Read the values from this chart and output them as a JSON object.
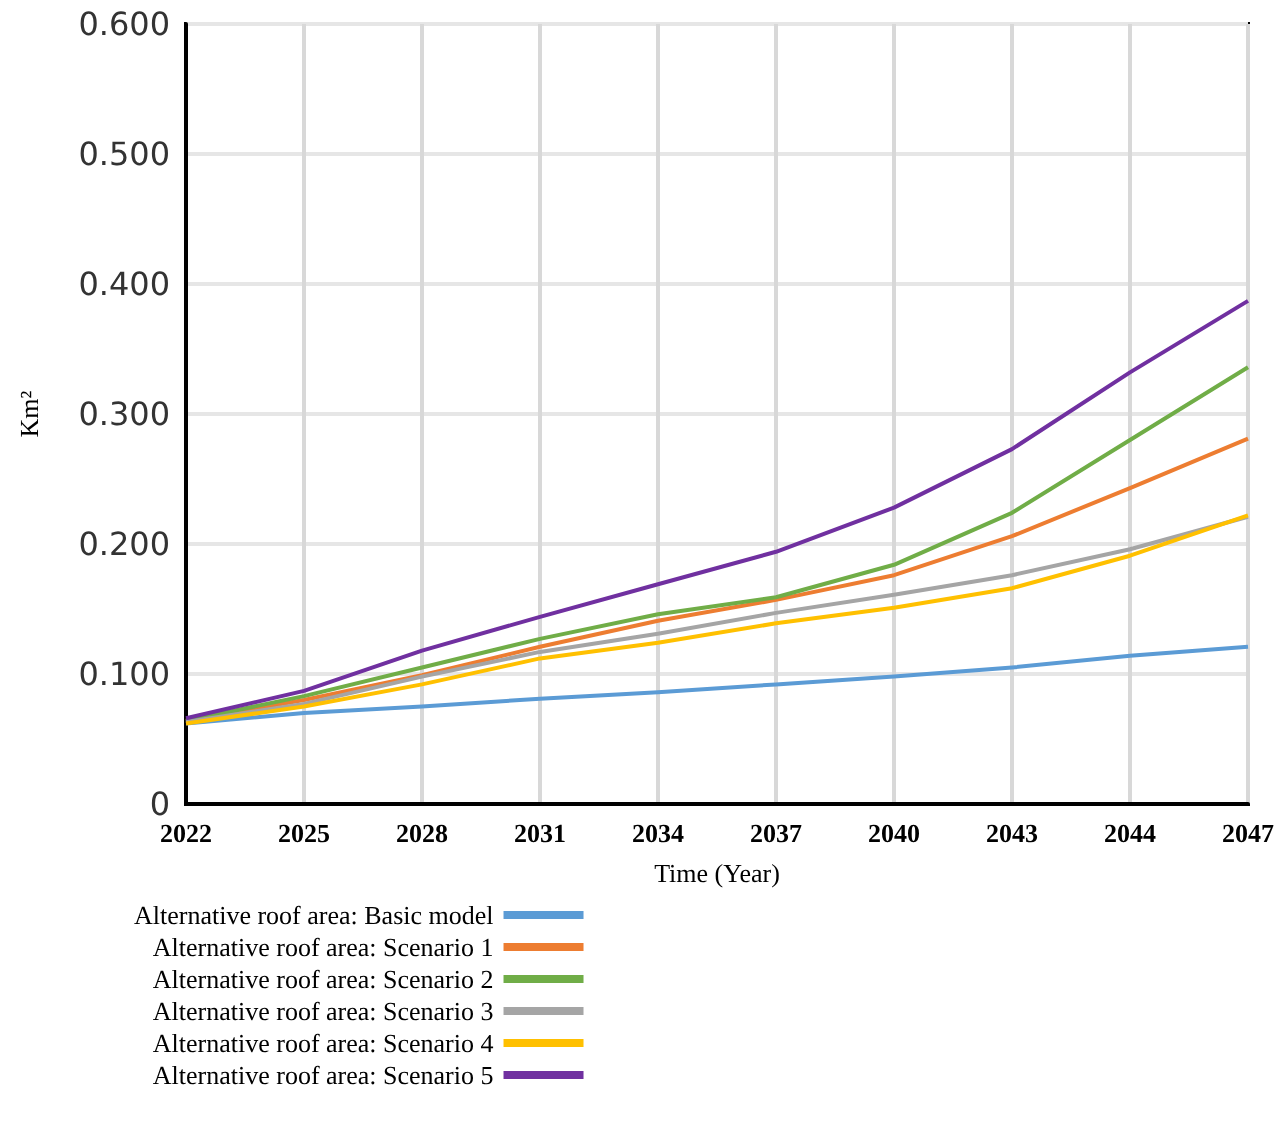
{
  "chart_data": {
    "type": "line",
    "xlabel": "Time (Year)",
    "ylabel": "Km²",
    "categories": [
      "2022",
      "2025",
      "2028",
      "2031",
      "2034",
      "2037",
      "2040",
      "2043",
      "2044",
      "2047"
    ],
    "ylim": [
      0,
      0.6
    ],
    "yticks": [
      0,
      {
        "value": 0.1,
        "label": "0.100"
      },
      {
        "value": 0.2,
        "label": "0.200"
      },
      {
        "value": 0.3,
        "label": "0.300"
      },
      {
        "value": 0.4,
        "label": "0.400"
      },
      {
        "value": 0.5,
        "label": "0.500"
      },
      {
        "value": 0.6,
        "label": "0.600"
      }
    ],
    "grid": true,
    "legend": "bottom",
    "marker": "none",
    "line_style": "solid",
    "series": [
      {
        "name": "Alternative roof area: Basic model",
        "color": "#5b9bd5",
        "values": [
          0.062,
          0.07,
          0.075,
          0.081,
          0.086,
          0.092,
          0.098,
          0.105,
          0.114,
          0.121
        ]
      },
      {
        "name": "Alternative roof area: Scenario 1",
        "color": "#ed7d31",
        "values": [
          0.064,
          0.08,
          0.099,
          0.121,
          0.141,
          0.157,
          0.176,
          0.206,
          0.243,
          0.281
        ]
      },
      {
        "name": "Alternative roof area: Scenario 2",
        "color": "#70ad47",
        "values": [
          0.064,
          0.083,
          0.105,
          0.127,
          0.146,
          0.159,
          0.184,
          0.224,
          0.28,
          0.336
        ]
      },
      {
        "name": "Alternative roof area: Scenario 3",
        "color": "#a5a5a5",
        "values": [
          0.063,
          0.077,
          0.098,
          0.117,
          0.131,
          0.147,
          0.161,
          0.176,
          0.196,
          0.221
        ]
      },
      {
        "name": "Alternative roof area: Scenario 4",
        "color": "#ffc000",
        "values": [
          0.062,
          0.075,
          0.092,
          0.112,
          0.124,
          0.139,
          0.151,
          0.166,
          0.191,
          0.222
        ]
      },
      {
        "name": "Alternative roof area: Scenario 5",
        "color": "#7030a0",
        "values": [
          0.066,
          0.087,
          0.118,
          0.144,
          0.169,
          0.194,
          0.228,
          0.273,
          0.332,
          0.387
        ]
      }
    ]
  }
}
